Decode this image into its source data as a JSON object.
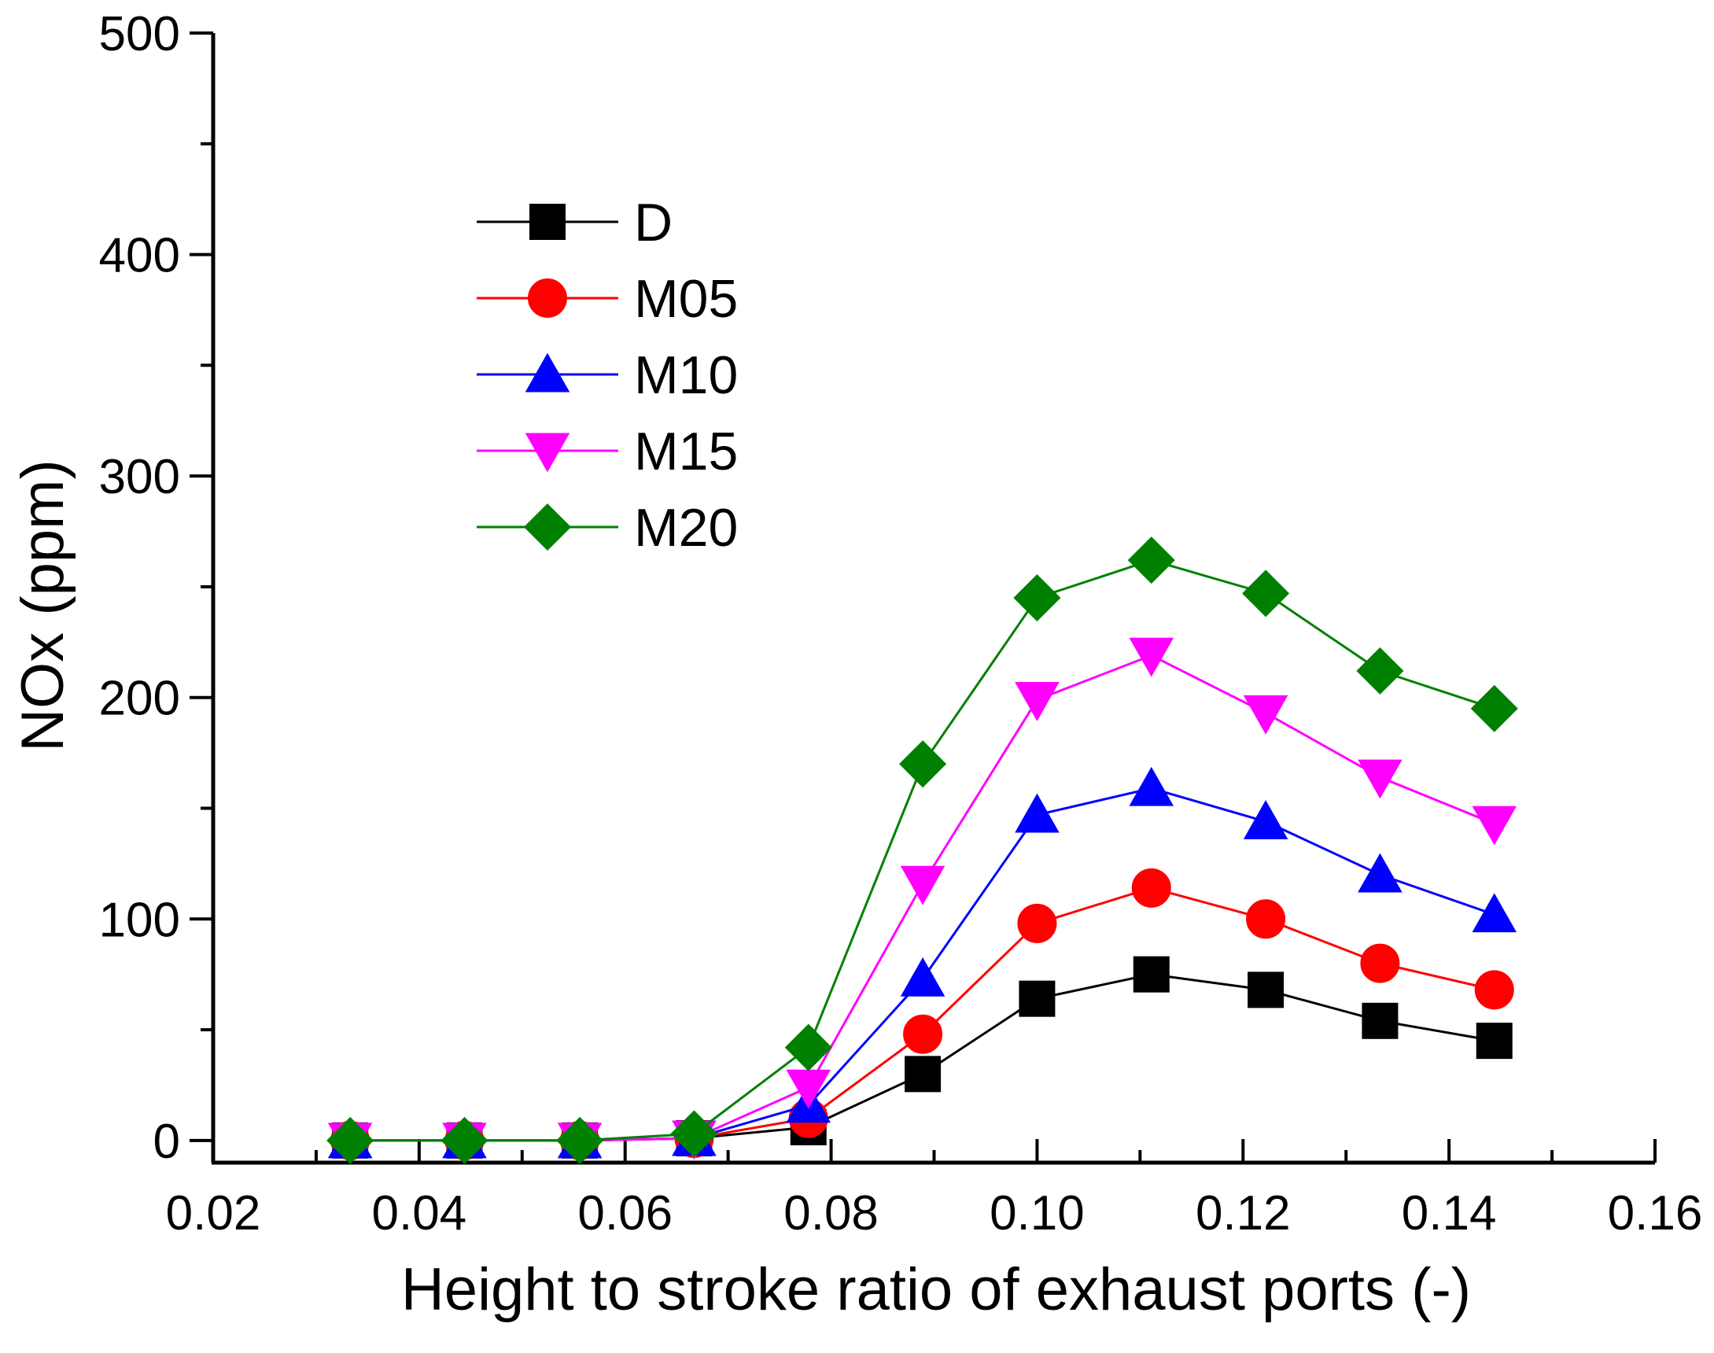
{
  "chart_data": {
    "type": "line",
    "title": "",
    "xlabel": "Height to stroke ratio of exhaust ports (-)",
    "ylabel": "NOx (ppm)",
    "xlim": [
      0.02,
      0.16
    ],
    "ylim": [
      -10,
      500
    ],
    "xticks": [
      "0.02",
      "0.04",
      "0.06",
      "0.08",
      "0.10",
      "0.12",
      "0.14",
      "0.16"
    ],
    "yticks": [
      "0",
      "100",
      "200",
      "300",
      "400",
      "500"
    ],
    "legend_position": "top-left",
    "x": [
      0.0333,
      0.0444,
      0.0556,
      0.0667,
      0.0778,
      0.0889,
      0.1,
      0.1111,
      0.1222,
      0.1333,
      0.1444
    ],
    "series": [
      {
        "name": "D",
        "color": "#000000",
        "marker": "square",
        "values": [
          0,
          0,
          0,
          1,
          6,
          30,
          64,
          75,
          68,
          54,
          45
        ]
      },
      {
        "name": "M05",
        "color": "#ff0000",
        "marker": "circle",
        "values": [
          0,
          0,
          0,
          1,
          10,
          48,
          98,
          114,
          100,
          80,
          68
        ]
      },
      {
        "name": "M10",
        "color": "#0000ff",
        "marker": "triangle-up",
        "values": [
          0,
          0,
          0,
          1,
          16,
          73,
          147,
          159,
          144,
          120,
          102
        ]
      },
      {
        "name": "M15",
        "color": "#ff00ff",
        "marker": "triangle-down",
        "values": [
          0,
          0,
          0,
          1,
          24,
          116,
          199,
          219,
          193,
          164,
          143
        ]
      },
      {
        "name": "M20",
        "color": "#008000",
        "marker": "diamond",
        "values": [
          0,
          0,
          0,
          3,
          42,
          170,
          245,
          262,
          247,
          212,
          195
        ]
      }
    ]
  }
}
